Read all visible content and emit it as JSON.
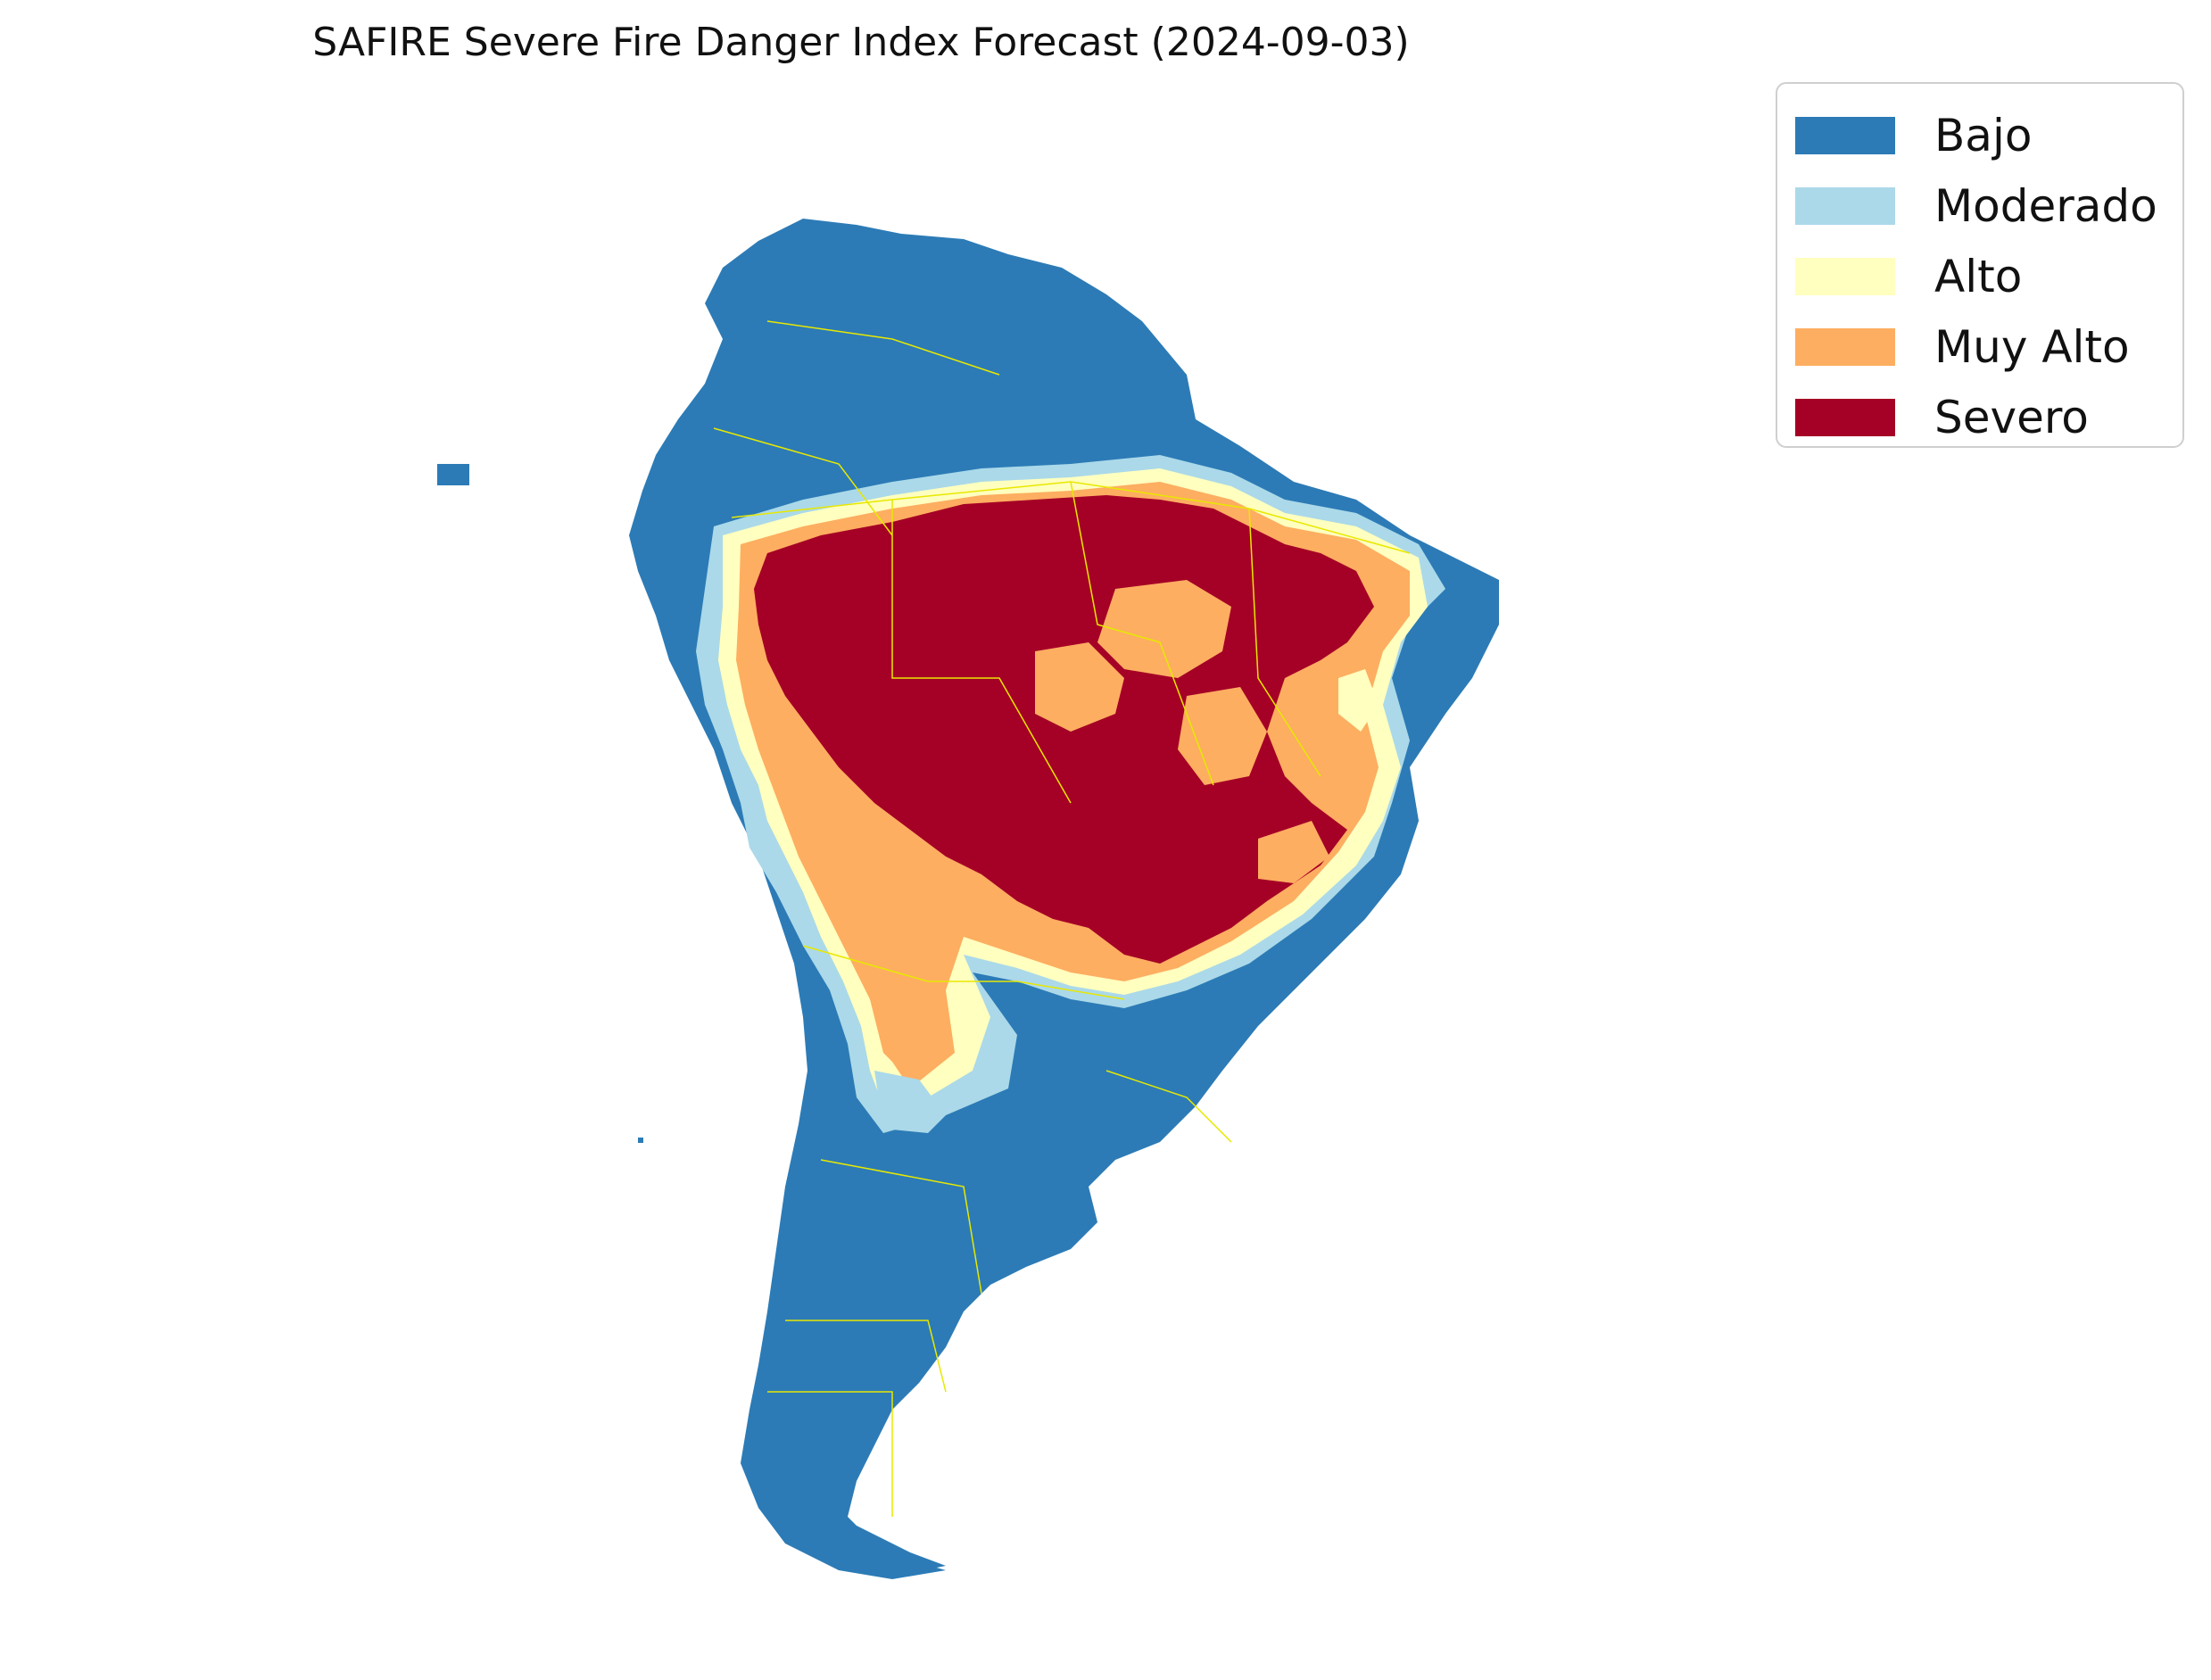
{
  "title": "SAFIRE Severe Fire Danger Index Forecast (2024-09-03)",
  "legend": {
    "placement": "upper-right",
    "items": [
      {
        "label": "Bajo",
        "color": "#2c7bb6"
      },
      {
        "label": "Moderado",
        "color": "#abd9e9"
      },
      {
        "label": "Alto",
        "color": "#ffffbf"
      },
      {
        "label": "Muy Alto",
        "color": "#fdae61"
      },
      {
        "label": "Severo",
        "color": "#a50026"
      }
    ]
  },
  "map": {
    "region": "South America",
    "border_color": "#e8e800",
    "colors": {
      "bajo": "#2c7bb6",
      "moderado": "#abd9e9",
      "alto": "#ffffbf",
      "muy_alto": "#fdae61",
      "severo": "#a50026"
    }
  }
}
